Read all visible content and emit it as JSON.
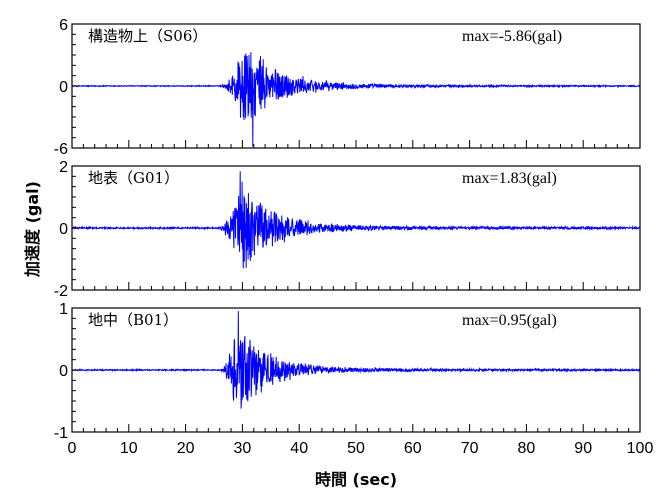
{
  "chart_data": {
    "type": "line",
    "x_axis": {
      "label": "時間 (sec)",
      "range": [
        0,
        100
      ],
      "ticks": [
        0,
        10,
        20,
        30,
        40,
        50,
        60,
        70,
        80,
        90,
        100
      ]
    },
    "y_axis_label": "加速度 (gal)",
    "line_color": "#0000ff",
    "grid": false,
    "panels": [
      {
        "title": "構造物上（S06）",
        "max_text": "max=-5.86(gal)",
        "peak_value": -5.86,
        "ylim": [
          -6,
          6
        ],
        "yticks": [
          6,
          0,
          -6
        ],
        "envelope": {
          "onset": 26,
          "peak_time": 30.2,
          "peak_amp": 5.2,
          "decay": 5.5,
          "tail": 0.22,
          "background": 0.05
        }
      },
      {
        "title": "地表（G01）",
        "max_text": "max=1.83(gal)",
        "peak_value": 1.83,
        "ylim": [
          -2,
          2
        ],
        "yticks": [
          2,
          0,
          -2
        ],
        "envelope": {
          "onset": 25.5,
          "peak_time": 29.6,
          "peak_amp": 1.75,
          "decay": 5,
          "tail": 0.1,
          "background": 0.03
        }
      },
      {
        "title": "地中（B01）",
        "max_text": "max=0.95(gal)",
        "peak_value": 0.95,
        "ylim": [
          -1,
          1
        ],
        "yticks": [
          1,
          0,
          -1
        ],
        "envelope": {
          "onset": 26,
          "peak_time": 29,
          "peak_amp": 0.9,
          "decay": 5,
          "tail": 0.04,
          "background": 0.012
        }
      }
    ]
  }
}
